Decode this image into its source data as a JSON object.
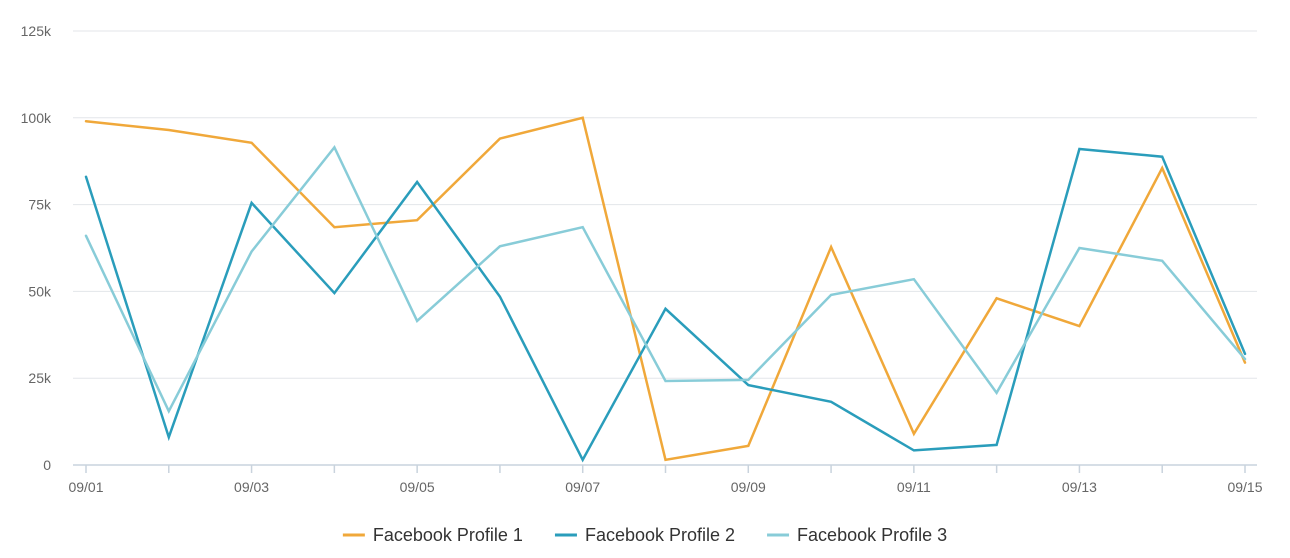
{
  "chart_data": {
    "type": "line",
    "title": "",
    "xlabel": "",
    "ylabel": "",
    "x": [
      "09/01",
      "09/02",
      "09/03",
      "09/04",
      "09/05",
      "09/06",
      "09/07",
      "09/08",
      "09/09",
      "09/10",
      "09/11",
      "09/12",
      "09/13",
      "09/14",
      "09/15"
    ],
    "x_tick_labels": [
      "09/01",
      "09/03",
      "09/05",
      "09/07",
      "09/09",
      "09/11",
      "09/13",
      "09/15"
    ],
    "ylim": [
      0,
      125000
    ],
    "y_ticks": [
      0,
      25000,
      50000,
      75000,
      100000,
      125000
    ],
    "y_tick_labels": [
      "0",
      "25k",
      "50k",
      "75k",
      "100k",
      "125k"
    ],
    "grid": true,
    "legend_position": "bottom-center",
    "series": [
      {
        "name": "Facebook Profile 1",
        "color": "#f0a83a",
        "values": [
          99000,
          96500,
          92800,
          68500,
          70500,
          94000,
          100000,
          1500,
          5500,
          62800,
          9000,
          48000,
          40000,
          85500,
          29500
        ]
      },
      {
        "name": "Facebook Profile 2",
        "color": "#2a9dbb",
        "values": [
          83000,
          8000,
          75500,
          49500,
          81500,
          48500,
          1500,
          45000,
          23000,
          18200,
          4200,
          5800,
          91000,
          88800,
          32000
        ]
      },
      {
        "name": "Facebook Profile 3",
        "color": "#88ccd8",
        "values": [
          66000,
          15500,
          61500,
          91500,
          41500,
          63000,
          68500,
          24200,
          24500,
          49000,
          53500,
          20800,
          62500,
          58800,
          30500
        ]
      }
    ]
  }
}
